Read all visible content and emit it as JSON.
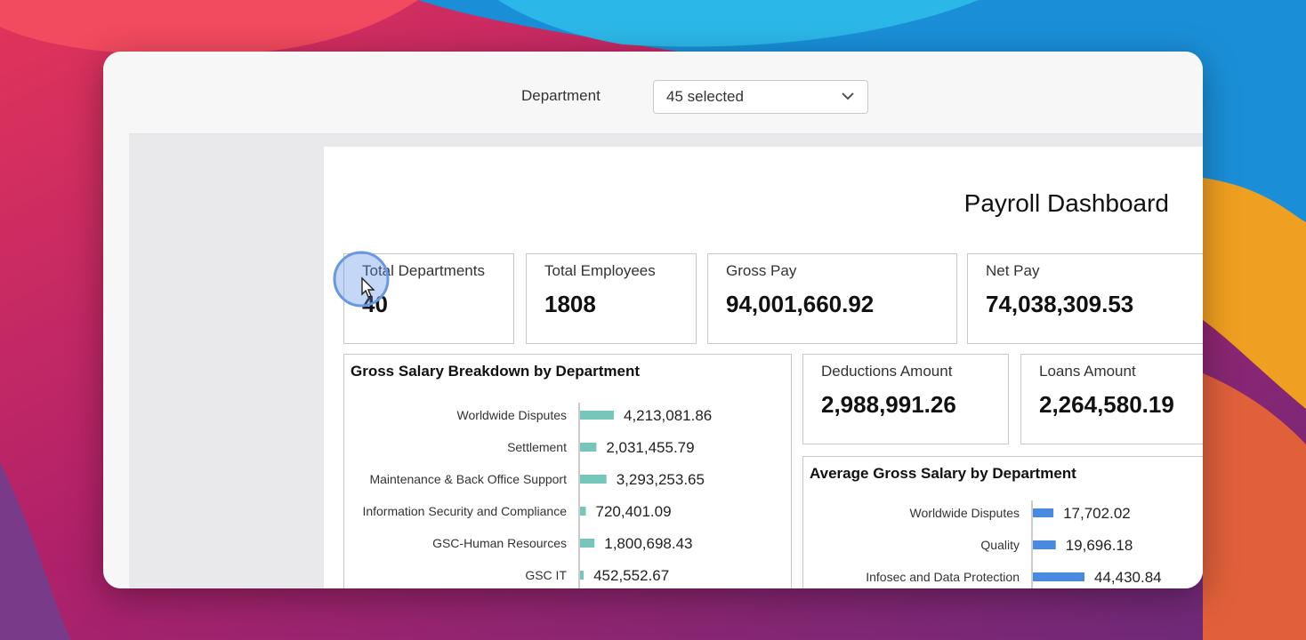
{
  "filter": {
    "label": "Department",
    "selected": "45 selected"
  },
  "dashboard": {
    "title": "Payroll Dashboard"
  },
  "kpis": {
    "total_departments": {
      "label": "Total Departments",
      "value": "40"
    },
    "total_employees": {
      "label": "Total Employees",
      "value": "1808"
    },
    "gross_pay": {
      "label": "Gross Pay",
      "value": "94,001,660.92"
    },
    "net_pay": {
      "label": "Net Pay",
      "value": "74,038,309.53"
    },
    "deductions": {
      "label": "Deductions Amount",
      "value": "2,988,991.26"
    },
    "loans": {
      "label": "Loans Amount",
      "value": "2,264,580.19"
    }
  },
  "colors": {
    "teal_bar": "#77c6bb",
    "blue_bar": "#4a89e0"
  },
  "chart_data": [
    {
      "type": "bar",
      "title": "Gross Salary Breakdown by Department",
      "categories": [
        "Worldwide Disputes",
        "Settlement",
        "Maintenance & Back Office Support",
        "Information Security and Compliance",
        "GSC-Human Resources",
        "GSC IT"
      ],
      "values": [
        4213081.86,
        2031455.79,
        3293253.65,
        720401.09,
        1800698.43,
        452552.67
      ],
      "data_labels": [
        "4,213,081.86",
        "2,031,455.79",
        "3,293,253.65",
        "720,401.09",
        "1,800,698.43",
        "452,552.67"
      ]
    },
    {
      "type": "bar",
      "title": "Average Gross Salary by Department",
      "categories": [
        "Worldwide Disputes",
        "Quality",
        "Infosec and Data Protection"
      ],
      "values": [
        17702.02,
        19696.18,
        44430.84
      ],
      "data_labels": [
        "17,702.02",
        "19,696.18",
        "44,430.84"
      ]
    }
  ]
}
